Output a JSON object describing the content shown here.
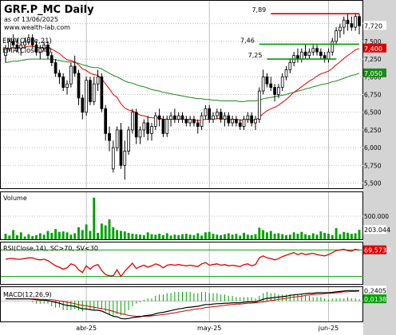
{
  "header": {
    "title": "GRF.P_MC Daily",
    "subtitle": "as of 13/06/2025",
    "site": "www.wealth-lab.com"
  },
  "colors": {
    "background": "#ffffff",
    "gutter": "#d4d4d4",
    "grid": "#bfbfbf",
    "candle_up": "#ffffff",
    "candle_down": "#000000",
    "ema21": "#e00000",
    "ema70": "#1a8a1a",
    "level_line": "#009a00",
    "level_top": "#e00000",
    "volume": "#00a000",
    "rsi": "#e00000",
    "rsi_bands": "#00aa00",
    "macd": "#000000",
    "macd_signal": "#cc0000",
    "macd_hist": "#00a000"
  },
  "chart_data": [
    {
      "type": "candlestick",
      "title": "GRF.P_MC Daily",
      "ylim": [
        5.45,
        8.05
      ],
      "yticks": [
        "7,750",
        "7,500",
        "7,250",
        "7,000",
        "6,750",
        "6,500",
        "6,250",
        "6,000",
        "5,750",
        "5,500"
      ],
      "x_labels": [
        {
          "label": "abr-25",
          "index": 21
        },
        {
          "label": "may-25",
          "index": 53
        },
        {
          "label": "jun-25",
          "index": 84
        }
      ],
      "legend": [
        "EMA(Close,21)",
        "EMA(Close,70)"
      ],
      "ohlc": [
        [
          7.3,
          7.45,
          7.2,
          7.4
        ],
        [
          7.4,
          7.55,
          7.35,
          7.5
        ],
        [
          7.5,
          7.6,
          7.4,
          7.45
        ],
        [
          7.45,
          7.55,
          7.35,
          7.4
        ],
        [
          7.4,
          7.5,
          7.3,
          7.45
        ],
        [
          7.45,
          7.55,
          7.4,
          7.5
        ],
        [
          7.5,
          7.6,
          7.45,
          7.55
        ],
        [
          7.55,
          7.6,
          7.4,
          7.45
        ],
        [
          7.45,
          7.5,
          7.3,
          7.35
        ],
        [
          7.35,
          7.45,
          7.25,
          7.4
        ],
        [
          7.4,
          7.5,
          7.35,
          7.45
        ],
        [
          7.45,
          7.5,
          7.25,
          7.3
        ],
        [
          7.3,
          7.35,
          7.15,
          7.2
        ],
        [
          7.2,
          7.25,
          7.0,
          7.05
        ],
        [
          7.05,
          7.1,
          6.9,
          7.0
        ],
        [
          7.0,
          7.05,
          6.8,
          6.85
        ],
        [
          6.85,
          6.95,
          6.75,
          6.9
        ],
        [
          6.9,
          7.2,
          6.85,
          7.15
        ],
        [
          7.15,
          7.3,
          7.0,
          7.05
        ],
        [
          7.05,
          7.1,
          6.6,
          6.7
        ],
        [
          6.7,
          6.75,
          6.4,
          6.5
        ],
        [
          6.5,
          7.0,
          6.45,
          6.95
        ],
        [
          6.95,
          7.0,
          6.6,
          6.65
        ],
        [
          6.65,
          7.0,
          6.6,
          6.9
        ],
        [
          6.9,
          7.1,
          6.8,
          7.0
        ],
        [
          7.0,
          7.05,
          6.5,
          6.55
        ],
        [
          6.55,
          6.6,
          6.1,
          6.2
        ],
        [
          6.2,
          6.3,
          5.95,
          6.1
        ],
        [
          5.7,
          6.1,
          5.65,
          6.0
        ],
        [
          6.0,
          6.3,
          5.95,
          6.25
        ],
        [
          6.25,
          6.35,
          5.7,
          5.75
        ],
        [
          5.75,
          6.1,
          5.55,
          5.95
        ],
        [
          5.95,
          6.3,
          5.9,
          6.25
        ],
        [
          6.25,
          6.55,
          6.2,
          6.5
        ],
        [
          6.5,
          6.55,
          6.05,
          6.15
        ],
        [
          6.15,
          6.3,
          6.05,
          6.25
        ],
        [
          6.25,
          6.4,
          6.15,
          6.35
        ],
        [
          6.35,
          6.45,
          6.1,
          6.2
        ],
        [
          6.2,
          6.35,
          6.1,
          6.3
        ],
        [
          6.3,
          6.5,
          6.25,
          6.45
        ],
        [
          6.45,
          6.55,
          6.3,
          6.4
        ],
        [
          6.4,
          6.45,
          6.15,
          6.2
        ],
        [
          6.2,
          6.45,
          6.15,
          6.4
        ],
        [
          6.4,
          6.5,
          6.3,
          6.45
        ],
        [
          6.45,
          6.55,
          6.35,
          6.4
        ],
        [
          6.4,
          6.5,
          6.35,
          6.45
        ],
        [
          6.45,
          6.5,
          6.35,
          6.4
        ],
        [
          6.4,
          6.45,
          6.3,
          6.35
        ],
        [
          6.35,
          6.45,
          6.3,
          6.4
        ],
        [
          6.4,
          6.45,
          6.3,
          6.35
        ],
        [
          6.35,
          6.4,
          6.2,
          6.3
        ],
        [
          6.3,
          6.5,
          6.25,
          6.45
        ],
        [
          6.45,
          6.6,
          6.4,
          6.55
        ],
        [
          6.55,
          6.6,
          6.35,
          6.4
        ],
        [
          6.4,
          6.5,
          6.35,
          6.45
        ],
        [
          6.45,
          6.55,
          6.4,
          6.5
        ],
        [
          6.5,
          6.55,
          6.35,
          6.4
        ],
        [
          6.4,
          6.5,
          6.3,
          6.45
        ],
        [
          6.45,
          6.5,
          6.3,
          6.35
        ],
        [
          6.35,
          6.45,
          6.3,
          6.4
        ],
        [
          6.4,
          6.45,
          6.3,
          6.35
        ],
        [
          6.35,
          6.4,
          6.25,
          6.3
        ],
        [
          6.3,
          6.45,
          6.25,
          6.4
        ],
        [
          6.4,
          6.5,
          6.35,
          6.45
        ],
        [
          6.45,
          6.5,
          6.3,
          6.35
        ],
        [
          6.35,
          6.45,
          6.25,
          6.4
        ],
        [
          6.4,
          6.85,
          6.35,
          6.8
        ],
        [
          6.8,
          7.1,
          6.75,
          7.0
        ],
        [
          7.0,
          7.05,
          6.85,
          6.9
        ],
        [
          6.9,
          7.0,
          6.8,
          6.85
        ],
        [
          6.85,
          6.9,
          6.65,
          6.75
        ],
        [
          6.75,
          6.9,
          6.7,
          6.85
        ],
        [
          6.85,
          7.05,
          6.8,
          7.0
        ],
        [
          7.0,
          7.15,
          6.95,
          7.1
        ],
        [
          7.1,
          7.25,
          7.05,
          7.2
        ],
        [
          7.2,
          7.35,
          7.15,
          7.3
        ],
        [
          7.3,
          7.4,
          7.2,
          7.25
        ],
        [
          7.25,
          7.4,
          7.2,
          7.35
        ],
        [
          7.35,
          7.45,
          7.25,
          7.3
        ],
        [
          7.3,
          7.4,
          7.25,
          7.35
        ],
        [
          7.35,
          7.45,
          7.3,
          7.4
        ],
        [
          7.4,
          7.45,
          7.3,
          7.35
        ],
        [
          7.35,
          7.4,
          7.25,
          7.3
        ],
        [
          7.3,
          7.35,
          7.2,
          7.25
        ],
        [
          7.25,
          7.4,
          7.2,
          7.35
        ],
        [
          7.35,
          7.55,
          7.3,
          7.5
        ],
        [
          7.5,
          7.7,
          7.45,
          7.65
        ],
        [
          7.65,
          7.75,
          7.55,
          7.7
        ],
        [
          7.7,
          7.85,
          7.6,
          7.8
        ],
        [
          7.8,
          7.9,
          7.65,
          7.75
        ],
        [
          7.75,
          7.85,
          7.65,
          7.7
        ],
        [
          7.7,
          7.9,
          7.65,
          7.85
        ],
        [
          7.85,
          7.89,
          7.6,
          7.72
        ]
      ],
      "ema21": [
        7.4,
        7.41,
        7.41,
        7.41,
        7.41,
        7.42,
        7.43,
        7.43,
        7.42,
        7.41,
        7.42,
        7.41,
        7.39,
        7.36,
        7.33,
        7.28,
        7.24,
        7.23,
        7.21,
        7.17,
        7.11,
        7.09,
        7.05,
        7.03,
        7.02,
        6.97,
        6.9,
        6.83,
        6.75,
        6.71,
        6.62,
        6.56,
        6.53,
        6.52,
        6.49,
        6.46,
        6.45,
        6.43,
        6.42,
        6.42,
        6.42,
        6.4,
        6.4,
        6.4,
        6.4,
        6.4,
        6.4,
        6.4,
        6.4,
        6.39,
        6.38,
        6.39,
        6.4,
        6.4,
        6.4,
        6.41,
        6.41,
        6.41,
        6.4,
        6.4,
        6.4,
        6.39,
        6.39,
        6.4,
        6.39,
        6.39,
        6.43,
        6.48,
        6.52,
        6.55,
        6.57,
        6.6,
        6.64,
        6.68,
        6.73,
        6.78,
        6.82,
        6.86,
        6.9,
        6.94,
        6.97,
        7.01,
        7.04,
        7.06,
        7.08,
        7.12,
        7.17,
        7.21,
        7.26,
        7.3,
        7.34,
        7.38,
        7.4
      ],
      "ema70": [
        7.2,
        7.21,
        7.22,
        7.22,
        7.23,
        7.24,
        7.25,
        7.25,
        7.25,
        7.25,
        7.25,
        7.25,
        7.25,
        7.24,
        7.23,
        7.22,
        7.21,
        7.21,
        7.2,
        7.19,
        7.17,
        7.16,
        7.14,
        7.13,
        7.13,
        7.11,
        7.08,
        7.05,
        7.02,
        7.0,
        6.97,
        6.94,
        6.92,
        6.91,
        6.89,
        6.87,
        6.86,
        6.84,
        6.82,
        6.81,
        6.8,
        6.78,
        6.77,
        6.76,
        6.75,
        6.74,
        6.73,
        6.72,
        6.71,
        6.7,
        6.69,
        6.69,
        6.68,
        6.68,
        6.67,
        6.67,
        6.66,
        6.66,
        6.66,
        6.66,
        6.66,
        6.65,
        6.65,
        6.66,
        6.66,
        6.66,
        6.67,
        6.69,
        6.7,
        6.71,
        6.72,
        6.73,
        6.74,
        6.75,
        6.77,
        6.78,
        6.8,
        6.81,
        6.83,
        6.84,
        6.86,
        6.87,
        6.89,
        6.9,
        6.91,
        6.93,
        6.94,
        6.96,
        6.98,
        7.0,
        7.02,
        7.03,
        7.05
      ],
      "levels": [
        {
          "label": "7,89",
          "value": 7.89,
          "from": 69,
          "to": 92,
          "kind": "top"
        },
        {
          "label": "7,46",
          "value": 7.46,
          "from": 66,
          "to": 92,
          "kind": "level"
        },
        {
          "label": "7,25",
          "value": 7.25,
          "from": 68,
          "to": 86,
          "kind": "level"
        }
      ],
      "last_close_label": "7,720",
      "ema21_label": "7,400",
      "ema70_label": "7,050"
    },
    {
      "type": "bar",
      "title": "Volume",
      "ylim": [
        0,
        1000
      ],
      "yticks": [
        "500.000"
      ],
      "last_label": "203.044",
      "values": [
        120,
        80,
        200,
        90,
        150,
        60,
        110,
        70,
        90,
        130,
        100,
        180,
        140,
        220,
        160,
        170,
        150,
        100,
        130,
        260,
        200,
        320,
        180,
        900,
        140,
        340,
        300,
        430,
        260,
        200,
        180,
        170,
        140,
        120,
        110,
        100,
        90,
        150,
        110,
        100,
        120,
        90,
        130,
        80,
        100,
        90,
        110,
        120,
        100,
        90,
        130,
        80,
        150,
        160,
        120,
        100,
        90,
        110,
        130,
        100,
        120,
        80,
        140,
        100,
        90,
        110,
        250,
        200,
        150,
        180,
        120,
        130,
        110,
        90,
        100,
        150,
        120,
        160,
        110,
        90,
        130,
        100,
        170,
        140,
        120,
        90,
        240,
        110,
        160,
        140,
        120,
        130,
        203
      ]
    },
    {
      "type": "line",
      "title": "RSI(Close,14), SC>70, SV<30",
      "ylim": [
        20,
        80
      ],
      "levels": [
        70,
        30
      ],
      "last_label": "69,5736",
      "values": [
        56,
        57,
        57,
        56,
        56,
        57,
        58,
        58,
        56,
        55,
        56,
        54,
        50,
        46,
        44,
        41,
        43,
        49,
        47,
        40,
        36,
        46,
        41,
        46,
        48,
        39,
        33,
        31,
        31,
        40,
        30,
        38,
        44,
        50,
        42,
        45,
        47,
        44,
        46,
        49,
        47,
        43,
        47,
        48,
        47,
        48,
        47,
        46,
        47,
        46,
        45,
        49,
        51,
        47,
        48,
        49,
        47,
        48,
        46,
        47,
        46,
        45,
        48,
        49,
        46,
        48,
        58,
        61,
        58,
        57,
        55,
        57,
        60,
        62,
        64,
        66,
        63,
        65,
        63,
        64,
        65,
        63,
        62,
        61,
        63,
        66,
        69,
        70,
        71,
        69,
        68,
        71,
        69.5736
      ]
    },
    {
      "type": "line",
      "title": "MACD(12,26,9)",
      "ylim": [
        -0.45,
        0.3
      ],
      "last_label": "0,2405",
      "hist_label": "0,0138",
      "macd": [
        0.05,
        0.05,
        0.05,
        0.05,
        0.05,
        0.05,
        0.05,
        0.04,
        0.03,
        0.02,
        0.02,
        0.01,
        -0.01,
        -0.03,
        -0.05,
        -0.08,
        -0.1,
        -0.11,
        -0.12,
        -0.15,
        -0.18,
        -0.18,
        -0.2,
        -0.21,
        -0.21,
        -0.23,
        -0.27,
        -0.31,
        -0.35,
        -0.36,
        -0.4,
        -0.41,
        -0.4,
        -0.38,
        -0.37,
        -0.36,
        -0.34,
        -0.33,
        -0.32,
        -0.29,
        -0.27,
        -0.26,
        -0.24,
        -0.22,
        -0.2,
        -0.18,
        -0.17,
        -0.15,
        -0.14,
        -0.13,
        -0.12,
        -0.1,
        -0.08,
        -0.08,
        -0.07,
        -0.06,
        -0.06,
        -0.05,
        -0.05,
        -0.04,
        -0.04,
        -0.04,
        -0.03,
        -0.02,
        -0.02,
        -0.02,
        0.01,
        0.04,
        0.06,
        0.07,
        0.08,
        0.09,
        0.1,
        0.11,
        0.13,
        0.14,
        0.15,
        0.16,
        0.17,
        0.18,
        0.18,
        0.19,
        0.19,
        0.19,
        0.19,
        0.2,
        0.21,
        0.22,
        0.23,
        0.24,
        0.24,
        0.24,
        0.2405
      ],
      "signal": [
        0.05,
        0.05,
        0.05,
        0.05,
        0.05,
        0.05,
        0.05,
        0.05,
        0.05,
        0.04,
        0.04,
        0.03,
        0.03,
        0.02,
        0.0,
        -0.01,
        -0.03,
        -0.04,
        -0.06,
        -0.08,
        -0.1,
        -0.11,
        -0.13,
        -0.14,
        -0.16,
        -0.17,
        -0.19,
        -0.21,
        -0.24,
        -0.26,
        -0.29,
        -0.31,
        -0.33,
        -0.34,
        -0.35,
        -0.35,
        -0.35,
        -0.35,
        -0.34,
        -0.33,
        -0.32,
        -0.31,
        -0.3,
        -0.28,
        -0.27,
        -0.25,
        -0.24,
        -0.22,
        -0.21,
        -0.19,
        -0.18,
        -0.17,
        -0.15,
        -0.14,
        -0.13,
        -0.12,
        -0.11,
        -0.1,
        -0.09,
        -0.08,
        -0.07,
        -0.07,
        -0.06,
        -0.05,
        -0.05,
        -0.04,
        -0.03,
        -0.02,
        -0.01,
        0.01,
        0.02,
        0.04,
        0.05,
        0.06,
        0.08,
        0.09,
        0.1,
        0.11,
        0.13,
        0.14,
        0.15,
        0.16,
        0.16,
        0.17,
        0.18,
        0.18,
        0.19,
        0.2,
        0.21,
        0.21,
        0.22,
        0.22,
        0.2267
      ]
    }
  ]
}
